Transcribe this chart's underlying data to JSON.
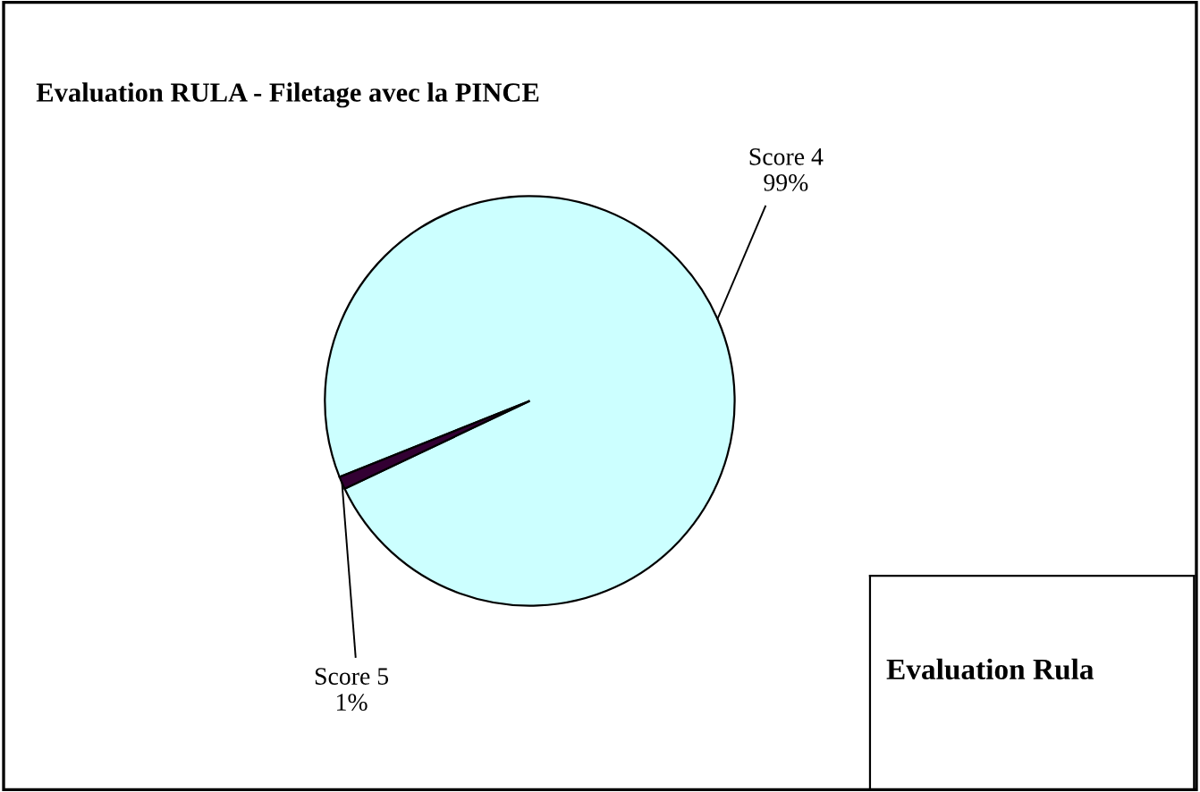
{
  "chart_data": {
    "type": "pie",
    "title": "Evaluation RULA - Filetage avec la PINCE",
    "categories": [
      "Score 4",
      "Score 5"
    ],
    "values": [
      99,
      1
    ],
    "value_labels": [
      "99%",
      "1%"
    ],
    "colors": [
      "#ccffff",
      "#330033"
    ],
    "annotations": [
      "Evaluation Rula"
    ]
  }
}
